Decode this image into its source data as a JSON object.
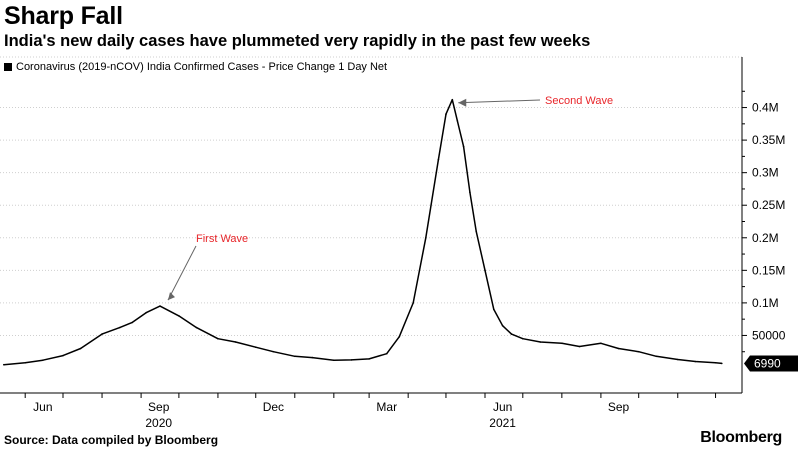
{
  "header": {
    "title": "Sharp Fall",
    "subtitle": "India's new daily cases have plummeted very rapidly in the past few weeks"
  },
  "footer": {
    "source": "Source: Data compiled by Bloomberg",
    "brand": "Bloomberg"
  },
  "colors": {
    "line": "#000000",
    "annotation": "#e8262b",
    "grid": "#cfcfcf",
    "badge_bg": "#000000",
    "badge_text": "#ffffff"
  },
  "chart_data": {
    "type": "line",
    "title": "Sharp Fall",
    "subtitle": "India's new daily cases have plummeted very rapidly in the past few weeks",
    "series": [
      {
        "name": "Coronavirus (2019-nCOV) India Confirmed Cases - Price Change 1 Day Net",
        "x": [
          "2020-05-15",
          "2020-06-01",
          "2020-06-15",
          "2020-07-01",
          "2020-07-15",
          "2020-08-01",
          "2020-08-15",
          "2020-08-25",
          "2020-09-05",
          "2020-09-16",
          "2020-10-01",
          "2020-10-15",
          "2020-11-01",
          "2020-11-15",
          "2020-12-01",
          "2020-12-15",
          "2021-01-01",
          "2021-01-15",
          "2021-02-01",
          "2021-02-15",
          "2021-03-01",
          "2021-03-15",
          "2021-03-25",
          "2021-04-05",
          "2021-04-15",
          "2021-04-25",
          "2021-05-01",
          "2021-05-06",
          "2021-05-10",
          "2021-05-15",
          "2021-05-20",
          "2021-05-25",
          "2021-06-01",
          "2021-06-08",
          "2021-06-15",
          "2021-06-22",
          "2021-07-01",
          "2021-07-15",
          "2021-08-01",
          "2021-08-15",
          "2021-09-01",
          "2021-09-15",
          "2021-10-01",
          "2021-10-15",
          "2021-11-01",
          "2021-11-15",
          "2021-12-01",
          "2021-12-06"
        ],
        "values": [
          5000,
          8000,
          12000,
          19000,
          30000,
          52000,
          62000,
          70000,
          85000,
          95000,
          80000,
          62000,
          45000,
          40000,
          32000,
          25000,
          18000,
          16000,
          12000,
          12500,
          14000,
          22000,
          48000,
          100000,
          200000,
          320000,
          390000,
          412000,
          380000,
          340000,
          270000,
          210000,
          150000,
          90000,
          65000,
          52000,
          45000,
          40000,
          38000,
          33000,
          38000,
          30000,
          25000,
          18000,
          13000,
          10000,
          8000,
          6990
        ]
      }
    ],
    "last_value_label": "6990",
    "x_ticks": [
      "Jun",
      "Sep",
      "Dec",
      "Mar",
      "Jun",
      "Sep"
    ],
    "year_labels": [
      "2020",
      "2021"
    ],
    "y_ticks": [
      "50000",
      "0.1M",
      "0.15M",
      "0.2M",
      "0.25M",
      "0.3M",
      "0.35M",
      "0.4M"
    ],
    "ylim": [
      0,
      450000
    ],
    "annotations": [
      {
        "text": "First Wave",
        "x": "2020-09-16",
        "y": 95000
      },
      {
        "text": "Second Wave",
        "x": "2021-05-06",
        "y": 412000
      }
    ],
    "grid": true,
    "y_axis_side": "right"
  }
}
